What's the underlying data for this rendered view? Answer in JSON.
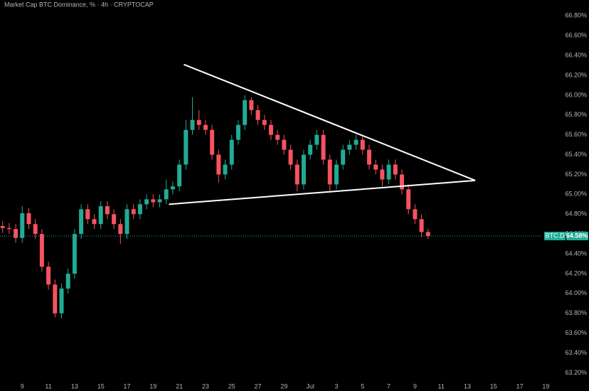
{
  "chart_data": {
    "type": "candlestick",
    "title": "Market Cap BTC Dominance, % · 4h · CRYPTOCAP",
    "up_color": "#22ab94",
    "down_color": "#f7525f",
    "trendline_color": "#ffffff",
    "xlim": [
      7.3,
      50.5
    ],
    "xticks": [
      9,
      11,
      13,
      15,
      17,
      19,
      21,
      23,
      25,
      27,
      29,
      {
        "value": 31,
        "label": "Jul"
      },
      {
        "value": 33,
        "label": "3"
      },
      {
        "value": 35,
        "label": "5"
      },
      {
        "value": 37,
        "label": "7"
      },
      {
        "value": 39,
        "label": "9"
      },
      {
        "value": 41,
        "label": "11"
      },
      {
        "value": 43,
        "label": "13"
      },
      {
        "value": 45,
        "label": "15"
      },
      {
        "value": 47,
        "label": "17"
      },
      {
        "value": 49,
        "label": "19"
      }
    ],
    "ylim": [
      63.16,
      66.96
    ],
    "yticks": [
      {
        "value": 63.2,
        "label": "63.20%"
      },
      {
        "value": 63.4,
        "label": "63.40%"
      },
      {
        "value": 63.6,
        "label": "63.60%"
      },
      {
        "value": 63.8,
        "label": "63.80%"
      },
      {
        "value": 64.0,
        "label": "64.00%"
      },
      {
        "value": 64.2,
        "label": "64.20%"
      },
      {
        "value": 64.4,
        "label": "64.40%"
      },
      {
        "value": 64.6,
        "label": "64.60%"
      },
      {
        "value": 64.8,
        "label": "64.80%"
      },
      {
        "value": 65.0,
        "label": "65.00%"
      },
      {
        "value": 65.2,
        "label": "65.20%"
      },
      {
        "value": 65.4,
        "label": "65.40%"
      },
      {
        "value": 65.6,
        "label": "65.60%"
      },
      {
        "value": 65.8,
        "label": "65.80%"
      },
      {
        "value": 66.0,
        "label": "66.00%"
      },
      {
        "value": 66.2,
        "label": "66.20%"
      },
      {
        "value": 66.4,
        "label": "66.40%"
      },
      {
        "value": 66.6,
        "label": "66.60%"
      },
      {
        "value": 66.8,
        "label": "66.80%"
      }
    ],
    "x": [
      7.5,
      8,
      8.5,
      9,
      9.5,
      10,
      10.5,
      11,
      11.5,
      12,
      12.5,
      13,
      13.5,
      14,
      14.5,
      15,
      15.5,
      16,
      16.5,
      17,
      17.5,
      18,
      18.5,
      19,
      19.5,
      20,
      20.5,
      21,
      21.5,
      22,
      22.5,
      23,
      23.5,
      24,
      24.5,
      25,
      25.5,
      26,
      26.5,
      27,
      27.5,
      28,
      28.5,
      29,
      29.5,
      30,
      30.5,
      31,
      31.5,
      32,
      32.5,
      33,
      33.5,
      34,
      34.5,
      35,
      35.5,
      36,
      36.5,
      37,
      37.5,
      38,
      38.5,
      39,
      39.5,
      40
    ],
    "open": [
      64.68,
      64.66,
      64.65,
      64.56,
      64.81,
      64.7,
      64.6,
      64.27,
      64.09,
      63.8,
      64.05,
      64.2,
      64.6,
      64.85,
      64.75,
      64.7,
      64.88,
      64.8,
      64.7,
      64.6,
      64.85,
      64.8,
      64.9,
      64.95,
      64.92,
      64.95,
      65.05,
      65.08,
      65.3,
      65.65,
      65.75,
      65.7,
      65.65,
      65.4,
      65.2,
      65.3,
      65.55,
      65.7,
      65.95,
      65.85,
      65.75,
      65.7,
      65.6,
      65.55,
      65.45,
      65.3,
      65.1,
      65.4,
      65.5,
      65.6,
      65.35,
      65.1,
      65.3,
      65.45,
      65.5,
      65.55,
      65.45,
      65.3,
      65.25,
      65.15,
      65.3,
      65.2,
      65.05,
      64.85,
      64.75,
      64.62
    ],
    "high": [
      64.73,
      64.71,
      64.7,
      64.88,
      64.86,
      64.75,
      64.65,
      64.32,
      64.14,
      64.1,
      64.25,
      64.65,
      64.9,
      64.9,
      64.8,
      64.93,
      64.93,
      64.85,
      64.75,
      64.9,
      64.9,
      64.95,
      65.0,
      65.0,
      65.0,
      65.15,
      65.13,
      65.35,
      65.75,
      65.98,
      65.85,
      65.75,
      65.7,
      65.45,
      65.35,
      65.6,
      65.75,
      66.0,
      65.98,
      65.9,
      65.8,
      65.75,
      65.65,
      65.6,
      65.5,
      65.35,
      65.45,
      65.55,
      65.65,
      65.65,
      65.4,
      65.35,
      65.5,
      65.55,
      65.6,
      65.6,
      65.5,
      65.35,
      65.3,
      65.35,
      65.35,
      65.25,
      65.1,
      64.9,
      64.8,
      64.65
    ],
    "low": [
      64.61,
      64.6,
      64.51,
      64.51,
      64.65,
      64.55,
      64.22,
      64.04,
      63.76,
      63.75,
      64.0,
      64.15,
      64.55,
      64.7,
      64.65,
      64.65,
      64.75,
      64.65,
      64.5,
      64.55,
      64.75,
      64.75,
      64.85,
      64.87,
      64.87,
      64.9,
      65.0,
      65.03,
      65.25,
      65.6,
      65.65,
      65.6,
      65.35,
      65.12,
      65.15,
      65.25,
      65.5,
      65.65,
      65.8,
      65.7,
      65.65,
      65.55,
      65.5,
      65.4,
      65.25,
      65.03,
      65.05,
      65.35,
      65.45,
      65.3,
      65.03,
      65.05,
      65.25,
      65.4,
      65.45,
      65.4,
      65.25,
      65.2,
      65.08,
      65.1,
      65.15,
      65.0,
      64.8,
      64.7,
      64.57,
      64.55
    ],
    "close": [
      64.66,
      64.65,
      64.56,
      64.81,
      64.7,
      64.6,
      64.27,
      64.09,
      63.8,
      64.05,
      64.2,
      64.6,
      64.85,
      64.75,
      64.7,
      64.88,
      64.8,
      64.7,
      64.6,
      64.85,
      64.8,
      64.9,
      64.95,
      64.92,
      64.95,
      65.05,
      65.08,
      65.3,
      65.65,
      65.75,
      65.7,
      65.65,
      65.4,
      65.2,
      65.3,
      65.55,
      65.7,
      65.95,
      65.85,
      65.75,
      65.7,
      65.6,
      65.55,
      65.45,
      65.3,
      65.1,
      65.4,
      65.5,
      65.6,
      65.35,
      65.1,
      65.3,
      65.45,
      65.5,
      65.55,
      65.45,
      65.3,
      65.25,
      65.15,
      65.3,
      65.2,
      65.05,
      64.85,
      64.75,
      64.62,
      64.58
    ],
    "trendlines": [
      {
        "x": [
          21.34,
          43.6
        ],
        "y": [
          66.31,
          65.14
        ]
      },
      {
        "x": [
          20.2,
          43.6
        ],
        "y": [
          64.9,
          65.14
        ]
      }
    ],
    "symbol_label": "BTC.D",
    "last_price": {
      "value": 64.58,
      "label": "64.58%"
    }
  }
}
